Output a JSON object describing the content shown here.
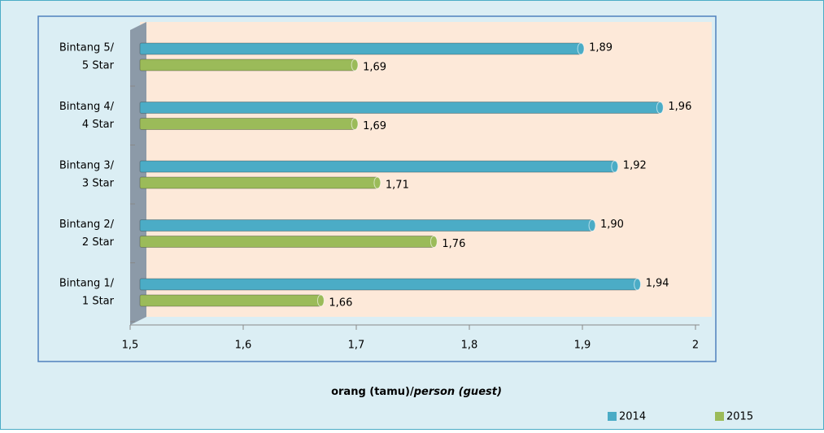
{
  "chart_data": {
    "type": "hbar",
    "categories": [
      [
        "Bintang 5/",
        "5 Star"
      ],
      [
        "Bintang 4/",
        "4 Star"
      ],
      [
        "Bintang 3/",
        "3 Star"
      ],
      [
        "Bintang 2/",
        "2 Star"
      ],
      [
        "Bintang 1/",
        "1 Star"
      ]
    ],
    "series": [
      {
        "name": "2014",
        "color": "#4bacc6",
        "values": [
          1.89,
          1.96,
          1.92,
          1.9,
          1.94
        ],
        "value_labels": [
          "1,89",
          "1,96",
          "1,92",
          "1,90",
          "1,94"
        ]
      },
      {
        "name": "2015",
        "color": "#9bbb59",
        "values": [
          1.69,
          1.69,
          1.71,
          1.76,
          1.66
        ],
        "value_labels": [
          "1,69",
          "1,69",
          "1,71",
          "1,76",
          "1,66"
        ]
      }
    ],
    "xlim": [
      1.5,
      2
    ],
    "xticks": [
      {
        "value": 1.5,
        "label": "1,5"
      },
      {
        "value": 1.6,
        "label": "1,6"
      },
      {
        "value": 1.7,
        "label": "1,7"
      },
      {
        "value": 1.8,
        "label": "1,8"
      },
      {
        "value": 1.9,
        "label": "1,9"
      },
      2
    ],
    "xlabel": [
      "orang (tamu)/",
      "person (guest)"
    ],
    "legend": "bottom-right"
  }
}
